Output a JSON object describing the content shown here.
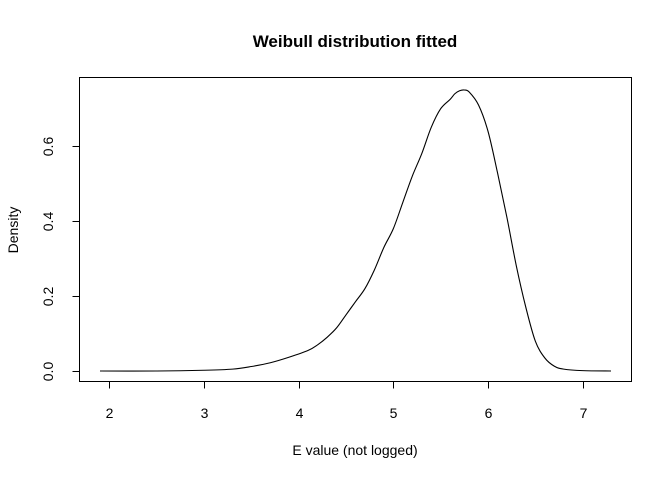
{
  "chart_data": {
    "type": "line",
    "title": "Weibull distribution fitted",
    "xlabel": "E value (not logged)",
    "ylabel": "Density",
    "xlim": [
      1.9,
      7.3
    ],
    "ylim": [
      0,
      0.75
    ],
    "xticks": [
      2,
      3,
      4,
      5,
      6,
      7
    ],
    "yticks": [
      0.0,
      0.2,
      0.4,
      0.6
    ],
    "ytick_labels": [
      "0.0",
      "0.2",
      "0.4",
      "0.6"
    ],
    "grid": false,
    "legend": "none",
    "series": [
      {
        "x": [
          1.9,
          2.5,
          3.0,
          3.3,
          3.5,
          3.7,
          3.9,
          4.1,
          4.2,
          4.3,
          4.4,
          4.5,
          4.6,
          4.7,
          4.8,
          4.9,
          5.0,
          5.1,
          5.2,
          5.3,
          5.4,
          5.5,
          5.6,
          5.65,
          5.7,
          5.75,
          5.8,
          5.9,
          6.0,
          6.1,
          6.2,
          6.3,
          6.4,
          6.5,
          6.6,
          6.7,
          6.8,
          7.0,
          7.3
        ],
        "y": [
          0.0,
          0.0,
          0.002,
          0.005,
          0.012,
          0.022,
          0.037,
          0.055,
          0.07,
          0.09,
          0.115,
          0.15,
          0.185,
          0.22,
          0.27,
          0.33,
          0.38,
          0.45,
          0.52,
          0.58,
          0.65,
          0.7,
          0.725,
          0.74,
          0.748,
          0.75,
          0.745,
          0.71,
          0.64,
          0.53,
          0.41,
          0.28,
          0.17,
          0.08,
          0.035,
          0.013,
          0.005,
          0.001,
          0.0
        ]
      }
    ]
  }
}
